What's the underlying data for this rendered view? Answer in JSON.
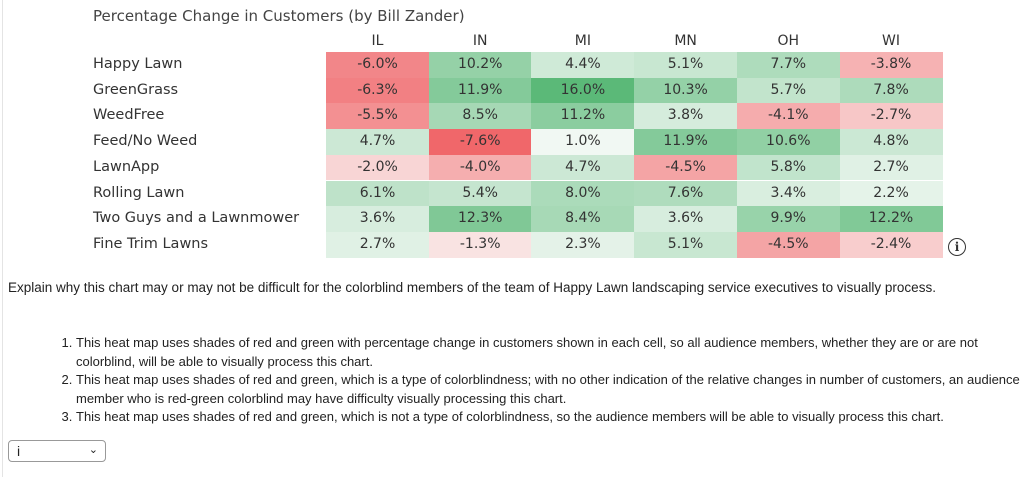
{
  "chart_data": {
    "type": "heatmap",
    "title": "Percentage Change in Customers (by Bill Zander)",
    "columns": [
      "IL",
      "IN",
      "MI",
      "MN",
      "OH",
      "WI"
    ],
    "rows": [
      "Happy Lawn",
      "GreenGrass",
      "WeedFree",
      "Feed/No Weed",
      "LawnApp",
      "Rolling Lawn",
      "Two Guys and a Lawnmower",
      "Fine Trim Lawns"
    ],
    "values": [
      [
        -6.0,
        10.2,
        4.4,
        5.1,
        7.7,
        -3.8
      ],
      [
        -6.3,
        11.9,
        16.0,
        10.3,
        5.7,
        7.8
      ],
      [
        -5.5,
        8.5,
        11.2,
        3.8,
        -4.1,
        -2.7
      ],
      [
        4.7,
        -7.6,
        1.0,
        11.9,
        10.6,
        4.8
      ],
      [
        -2.0,
        -4.0,
        4.7,
        -4.5,
        5.8,
        2.7
      ],
      [
        6.1,
        5.4,
        8.0,
        7.6,
        3.4,
        2.2
      ],
      [
        3.6,
        12.3,
        8.4,
        3.6,
        9.9,
        12.2
      ],
      [
        2.7,
        -1.3,
        2.3,
        5.1,
        -4.5,
        -2.4
      ]
    ],
    "unit": "%",
    "color_scale": {
      "negative": "#f0676a",
      "zero": "#fbfcfb",
      "positive": "#5bb978"
    }
  },
  "info_icon": "info-icon",
  "question": "Explain why this chart may or may not be difficult for the colorblind members of the team of Happy Lawn landscaping service executives to visually process.",
  "options": [
    "This heat map uses shades of red and green with percentage change in customers shown in each cell, so all audience members, whether they are or are not colorblind, will be able to visually process this chart.",
    "This heat map uses shades of red and green, which is a type of colorblindness; with no other indication of the relative changes in number of customers, an audience member who is red-green colorblind may have difficulty visually processing this chart.",
    "This heat map uses shades of red and green, which is not a type of colorblindness, so the audience members will be able to visually process this chart."
  ],
  "answer_select": {
    "value": "i"
  }
}
